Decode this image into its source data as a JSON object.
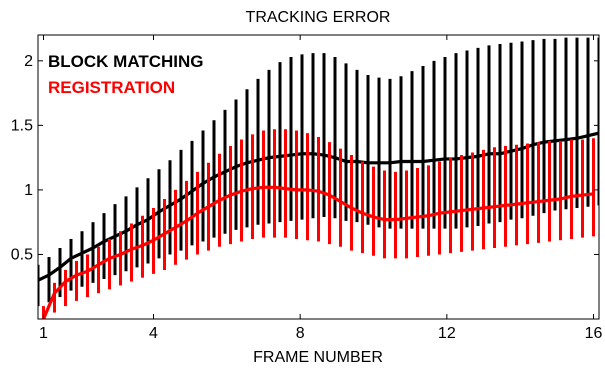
{
  "chart_data": {
    "type": "line",
    "title": "TRACKING ERROR",
    "xlabel": "FRAME NUMBER",
    "ylabel": "",
    "xlim": [
      0.85,
      16.15
    ],
    "ylim": [
      0.0,
      2.2
    ],
    "xticks": [
      1,
      4,
      8,
      12,
      16
    ],
    "yticks": [
      0.5,
      1,
      1.5,
      2
    ],
    "ytick_labels": [
      "0.5",
      "1",
      "1.5",
      "2"
    ],
    "grid": false,
    "legend_placement": "top-left",
    "series": [
      {
        "name": "BLOCK MATCHING",
        "color": "#000000",
        "x": [
          0.85,
          1.15,
          1.45,
          1.75,
          2.05,
          2.35,
          2.65,
          2.95,
          3.25,
          3.55,
          3.85,
          4.15,
          4.45,
          4.75,
          5.05,
          5.35,
          5.65,
          5.95,
          6.25,
          6.55,
          6.85,
          7.15,
          7.45,
          7.75,
          8.05,
          8.35,
          8.65,
          8.95,
          9.25,
          9.55,
          9.85,
          10.15,
          10.45,
          10.75,
          11.05,
          11.35,
          11.65,
          11.95,
          12.25,
          12.55,
          12.85,
          13.15,
          13.45,
          13.75,
          14.05,
          14.35,
          14.65,
          14.95,
          15.25,
          15.55,
          15.85,
          16.15
        ],
        "mean": [
          0.3,
          0.34,
          0.4,
          0.47,
          0.51,
          0.55,
          0.6,
          0.64,
          0.68,
          0.73,
          0.77,
          0.83,
          0.88,
          0.93,
          0.99,
          1.05,
          1.1,
          1.14,
          1.18,
          1.21,
          1.23,
          1.25,
          1.26,
          1.27,
          1.28,
          1.28,
          1.27,
          1.25,
          1.22,
          1.22,
          1.21,
          1.21,
          1.21,
          1.22,
          1.22,
          1.22,
          1.23,
          1.24,
          1.24,
          1.25,
          1.26,
          1.28,
          1.28,
          1.3,
          1.32,
          1.35,
          1.37,
          1.38,
          1.39,
          1.4,
          1.42,
          1.44
        ],
        "lower": [
          0.1,
          0.13,
          0.17,
          0.22,
          0.25,
          0.28,
          0.31,
          0.34,
          0.37,
          0.4,
          0.43,
          0.47,
          0.5,
          0.53,
          0.57,
          0.6,
          0.63,
          0.66,
          0.69,
          0.71,
          0.73,
          0.74,
          0.75,
          0.76,
          0.77,
          0.78,
          0.79,
          0.78,
          0.76,
          0.75,
          0.73,
          0.71,
          0.7,
          0.7,
          0.7,
          0.7,
          0.7,
          0.7,
          0.7,
          0.71,
          0.72,
          0.74,
          0.75,
          0.77,
          0.78,
          0.8,
          0.82,
          0.84,
          0.85,
          0.86,
          0.87,
          0.88
        ],
        "upper": [
          0.42,
          0.48,
          0.55,
          0.62,
          0.68,
          0.75,
          0.82,
          0.89,
          0.95,
          1.02,
          1.09,
          1.16,
          1.23,
          1.31,
          1.38,
          1.46,
          1.54,
          1.62,
          1.7,
          1.78,
          1.86,
          1.93,
          1.99,
          2.03,
          2.05,
          2.06,
          2.06,
          2.03,
          1.98,
          1.93,
          1.89,
          1.87,
          1.86,
          1.88,
          1.92,
          1.96,
          2.0,
          2.03,
          2.06,
          2.08,
          2.1,
          2.12,
          2.13,
          2.14,
          2.15,
          2.16,
          2.17,
          2.17,
          2.18,
          2.18,
          2.18,
          2.18
        ]
      },
      {
        "name": "REGISTRATION",
        "color": "#ff0000",
        "x": [
          1.0,
          1.3,
          1.6,
          1.9,
          2.2,
          2.5,
          2.8,
          3.1,
          3.4,
          3.7,
          4.0,
          4.3,
          4.6,
          4.9,
          5.2,
          5.5,
          5.8,
          6.1,
          6.4,
          6.7,
          7.0,
          7.3,
          7.6,
          7.9,
          8.2,
          8.5,
          8.8,
          9.1,
          9.4,
          9.7,
          10.0,
          10.3,
          10.6,
          10.9,
          11.2,
          11.5,
          11.8,
          12.1,
          12.4,
          12.7,
          13.0,
          13.3,
          13.6,
          13.9,
          14.2,
          14.5,
          14.8,
          15.1,
          15.4,
          15.7,
          16.0
        ],
        "mean": [
          0.0,
          0.2,
          0.29,
          0.34,
          0.37,
          0.42,
          0.47,
          0.5,
          0.54,
          0.57,
          0.61,
          0.66,
          0.71,
          0.76,
          0.82,
          0.87,
          0.92,
          0.96,
          0.99,
          1.01,
          1.02,
          1.02,
          1.01,
          1.0,
          1.0,
          0.99,
          0.96,
          0.91,
          0.86,
          0.82,
          0.79,
          0.77,
          0.77,
          0.78,
          0.79,
          0.8,
          0.82,
          0.83,
          0.84,
          0.85,
          0.86,
          0.87,
          0.88,
          0.89,
          0.9,
          0.91,
          0.92,
          0.93,
          0.95,
          0.96,
          0.97
        ],
        "lower": [
          0.0,
          0.05,
          0.1,
          0.14,
          0.17,
          0.2,
          0.23,
          0.26,
          0.29,
          0.32,
          0.35,
          0.38,
          0.42,
          0.46,
          0.5,
          0.53,
          0.56,
          0.58,
          0.6,
          0.62,
          0.63,
          0.63,
          0.63,
          0.62,
          0.61,
          0.6,
          0.58,
          0.56,
          0.53,
          0.51,
          0.49,
          0.47,
          0.47,
          0.47,
          0.48,
          0.49,
          0.5,
          0.51,
          0.52,
          0.53,
          0.54,
          0.55,
          0.56,
          0.57,
          0.58,
          0.59,
          0.6,
          0.61,
          0.62,
          0.63,
          0.64
        ],
        "upper": [
          0.1,
          0.28,
          0.38,
          0.45,
          0.5,
          0.56,
          0.62,
          0.68,
          0.74,
          0.8,
          0.86,
          0.93,
          1.0,
          1.07,
          1.14,
          1.21,
          1.28,
          1.34,
          1.39,
          1.43,
          1.46,
          1.47,
          1.47,
          1.46,
          1.44,
          1.41,
          1.37,
          1.32,
          1.27,
          1.22,
          1.18,
          1.15,
          1.14,
          1.15,
          1.17,
          1.19,
          1.22,
          1.25,
          1.27,
          1.29,
          1.31,
          1.33,
          1.34,
          1.35,
          1.36,
          1.37,
          1.38,
          1.38,
          1.39,
          1.39,
          1.4
        ]
      }
    ]
  }
}
